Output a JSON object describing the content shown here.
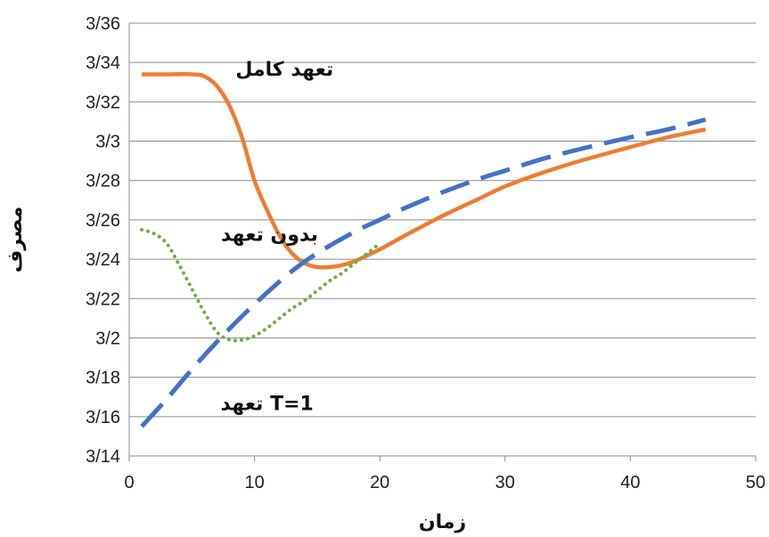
{
  "chart_data": {
    "type": "line",
    "xlabel": "زمان",
    "ylabel": "مصرف",
    "xlim": [
      0,
      50
    ],
    "ylim": [
      3.14,
      3.36
    ],
    "x_ticks": [
      0,
      10,
      20,
      30,
      40,
      50
    ],
    "x_tick_labels": [
      "0",
      "10",
      "20",
      "30",
      "40",
      "50"
    ],
    "y_ticks": [
      3.14,
      3.16,
      3.18,
      3.2,
      3.22,
      3.24,
      3.26,
      3.28,
      3.3,
      3.32,
      3.34,
      3.36
    ],
    "y_tick_labels": [
      "3/14",
      "3/16",
      "3/18",
      "3/2",
      "3/22",
      "3/24",
      "3/26",
      "3/28",
      "3/3",
      "3/32",
      "3/34",
      "3/36"
    ],
    "grid": "horizontal",
    "series": [
      {
        "label_ref": "full_commitment",
        "color": "#ED7D31",
        "style": "solid",
        "x": [
          1,
          3,
          5,
          6,
          7,
          8,
          9,
          10,
          11,
          12,
          13,
          14,
          15,
          16,
          17,
          18,
          20,
          22,
          25,
          28,
          30,
          33,
          36,
          40,
          43,
          46
        ],
        "y": [
          3.334,
          3.334,
          3.334,
          3.333,
          3.328,
          3.318,
          3.302,
          3.28,
          3.265,
          3.252,
          3.243,
          3.238,
          3.236,
          3.236,
          3.237,
          3.239,
          3.245,
          3.252,
          3.262,
          3.271,
          3.277,
          3.284,
          3.29,
          3.297,
          3.302,
          3.306
        ]
      },
      {
        "label_ref": "no_commitment",
        "color": "#70AD47",
        "style": "dotted",
        "x": [
          1,
          2,
          3,
          4,
          5,
          6,
          7,
          8,
          9,
          10,
          11,
          12,
          13,
          14,
          15,
          16,
          17,
          18,
          19,
          20
        ],
        "y": [
          3.255,
          3.253,
          3.248,
          3.237,
          3.225,
          3.213,
          3.203,
          3.199,
          3.199,
          3.201,
          3.205,
          3.21,
          3.215,
          3.219,
          3.224,
          3.229,
          3.233,
          3.238,
          3.243,
          3.248
        ]
      },
      {
        "label_ref": "t1_commitment",
        "color": "#4472C4",
        "style": "dashed",
        "x": [
          1,
          3,
          5,
          7,
          9,
          11,
          13,
          15,
          18,
          20,
          22,
          25,
          28,
          30,
          33,
          36,
          40,
          43,
          46
        ],
        "y": [
          3.155,
          3.169,
          3.184,
          3.198,
          3.211,
          3.223,
          3.234,
          3.243,
          3.254,
          3.26,
          3.266,
          3.274,
          3.281,
          3.285,
          3.291,
          3.296,
          3.302,
          3.306,
          3.311
        ]
      }
    ],
    "annotations": {
      "full_commitment": {
        "text": "تعهد کامل",
        "x": 12.4,
        "y": 3.337
      },
      "no_commitment": {
        "text": "بدون تعهد",
        "x": 11.2,
        "y": 3.253
      },
      "t1_commitment": {
        "text": "T=1 تعهد",
        "x": 11.0,
        "y": 3.167
      }
    }
  }
}
